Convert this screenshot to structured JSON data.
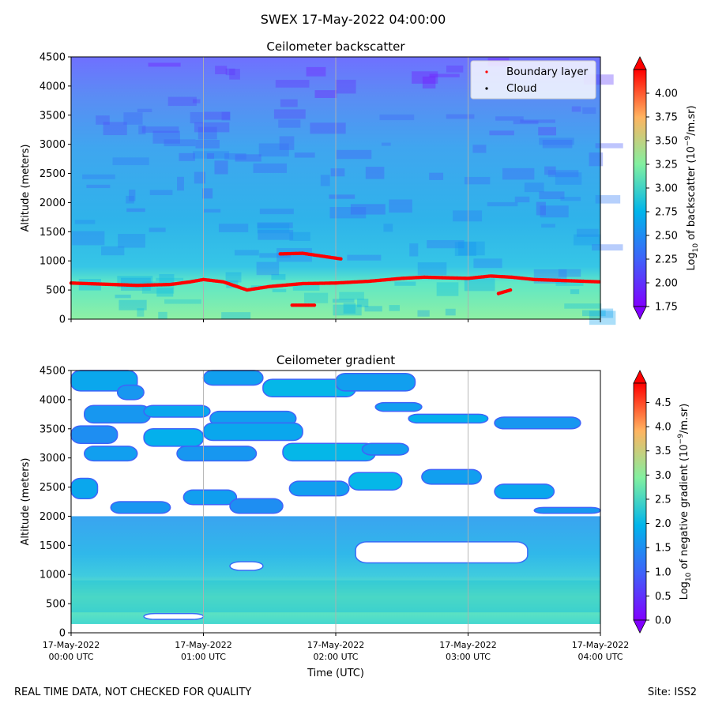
{
  "suptitle": "SWEX 17-May-2022 04:00:00",
  "footer": {
    "left": "REAL TIME DATA, NOT CHECKED FOR QUALITY",
    "right": "Site: ISS2"
  },
  "x_axis": {
    "label": "Time (UTC)",
    "range_hours": [
      0,
      4
    ],
    "ticks": [
      {
        "hour": 0,
        "date": "17-May-2022",
        "time": "00:00 UTC"
      },
      {
        "hour": 1,
        "date": "17-May-2022",
        "time": "01:00 UTC"
      },
      {
        "hour": 2,
        "date": "17-May-2022",
        "time": "02:00 UTC"
      },
      {
        "hour": 3,
        "date": "17-May-2022",
        "time": "03:00 UTC"
      },
      {
        "hour": 4,
        "date": "17-May-2022",
        "time": "04:00 UTC"
      }
    ]
  },
  "colors": {
    "boundary_layer": "#ff0000",
    "cloud": "#000000",
    "grid": "#b0b0b0",
    "gradient_background": "#ffffff"
  },
  "chart_data": [
    {
      "type": "heatmap",
      "title": "Ceilometer backscatter",
      "xlabel": "",
      "ylabel": "Altitude (meters)",
      "ylim": [
        0,
        4500
      ],
      "yticks": [
        0,
        500,
        1000,
        1500,
        2000,
        2500,
        3000,
        3500,
        4000,
        4500
      ],
      "colorbar": {
        "label": "Log10 of backscatter (10^-9/m.sr)",
        "label_main": "Log",
        "label_sub": "10",
        "label_mid": " of backscatter (10",
        "label_sup": "−9",
        "label_end": "/m.sr)",
        "range": [
          1.75,
          4.25
        ],
        "ticks": [
          1.75,
          2.0,
          2.25,
          2.5,
          2.75,
          3.0,
          3.25,
          3.5,
          3.75,
          4.0
        ],
        "tick_labels": [
          "1.75",
          "2.00",
          "2.25",
          "2.50",
          "2.75",
          "3.00",
          "3.25",
          "3.50",
          "3.75",
          "4.00"
        ],
        "extend": "both"
      },
      "legend": {
        "location": "upper right",
        "entries": [
          {
            "label": "Boundary layer",
            "color": "#ff0000"
          },
          {
            "label": "Cloud",
            "color": "#000000"
          }
        ]
      },
      "field": {
        "description_levels": [
          {
            "alt_min": 0,
            "alt_max": 700,
            "value": 2.75
          },
          {
            "alt_min": 700,
            "alt_max": 1700,
            "value": 2.45
          },
          {
            "alt_min": 1700,
            "alt_max": 3000,
            "value": 2.3
          },
          {
            "alt_min": 3000,
            "alt_max": 3800,
            "value": 2.15
          },
          {
            "alt_min": 3800,
            "alt_max": 4500,
            "value": 1.95
          }
        ]
      },
      "boundary_layer_series": [
        {
          "name": "main",
          "hours": [
            0.0,
            0.25,
            0.5,
            0.75,
            0.9,
            1.0,
            1.15,
            1.33,
            1.5,
            1.75,
            2.0,
            2.25,
            2.5,
            2.67,
            2.83,
            3.0,
            3.17,
            3.33,
            3.5,
            3.75,
            4.0
          ],
          "alt": [
            620,
            600,
            580,
            595,
            640,
            680,
            640,
            500,
            560,
            610,
            620,
            650,
            700,
            720,
            710,
            700,
            740,
            720,
            680,
            660,
            640
          ]
        },
        {
          "name": "upper",
          "hours": [
            1.58,
            1.75,
            1.9,
            2.05
          ],
          "alt": [
            1120,
            1130,
            1080,
            1030
          ]
        },
        {
          "name": "low",
          "hours": [
            1.67,
            1.85
          ],
          "alt": [
            240,
            240
          ]
        },
        {
          "name": "spots",
          "hours": [
            3.23,
            3.32
          ],
          "alt": [
            440,
            500
          ]
        }
      ]
    },
    {
      "type": "heatmap",
      "title": "Ceilometer gradient",
      "xlabel": "Time (UTC)",
      "ylabel": "Altitude (meters)",
      "ylim": [
        0,
        4500
      ],
      "yticks": [
        0,
        500,
        1000,
        1500,
        2000,
        2500,
        3000,
        3500,
        4000,
        4500
      ],
      "colorbar": {
        "label": "Log10 of negative gradient (10^-9/m.sr)",
        "label_main": "Log",
        "label_sub": "10",
        "label_mid": " of negative gradient (10",
        "label_sup": "−9",
        "label_end": "/m.sr)",
        "range": [
          0.0,
          4.9
        ],
        "ticks": [
          0.0,
          0.5,
          1.0,
          1.5,
          2.0,
          2.5,
          3.0,
          3.5,
          4.0,
          4.5
        ],
        "tick_labels": [
          "0.0",
          "0.5",
          "1.0",
          "1.5",
          "2.0",
          "2.5",
          "3.0",
          "3.5",
          "4.0",
          "4.5"
        ],
        "extend": "both"
      },
      "bands": [
        {
          "alt_min": 150,
          "alt_max": 2000,
          "value": 1.6
        },
        {
          "alt_min": 350,
          "alt_max": 900,
          "value": 2.2
        }
      ],
      "clear_gaps": [
        {
          "h0": 0.55,
          "h1": 1.0,
          "a0": 230,
          "a1": 330
        },
        {
          "h0": 1.2,
          "h1": 1.45,
          "a0": 1070,
          "a1": 1220
        },
        {
          "h0": 2.15,
          "h1": 3.45,
          "a0": 1200,
          "a1": 1560
        }
      ],
      "patches": [
        {
          "h0": 0.0,
          "h1": 0.5,
          "a0": 4150,
          "a1": 4500,
          "v": 1.8
        },
        {
          "h0": 0.35,
          "h1": 0.55,
          "a0": 4000,
          "a1": 4250,
          "v": 1.6
        },
        {
          "h0": 1.0,
          "h1": 1.45,
          "a0": 4250,
          "a1": 4500,
          "v": 1.7
        },
        {
          "h0": 1.45,
          "h1": 2.15,
          "a0": 4050,
          "a1": 4350,
          "v": 2.0
        },
        {
          "h0": 2.0,
          "h1": 2.6,
          "a0": 4150,
          "a1": 4450,
          "v": 1.7
        },
        {
          "h0": 0.1,
          "h1": 0.6,
          "a0": 3600,
          "a1": 3900,
          "v": 1.6
        },
        {
          "h0": 0.55,
          "h1": 1.05,
          "a0": 3700,
          "a1": 3900,
          "v": 1.8
        },
        {
          "h0": 1.05,
          "h1": 1.7,
          "a0": 3550,
          "a1": 3800,
          "v": 1.7
        },
        {
          "h0": 0.0,
          "h1": 0.35,
          "a0": 3250,
          "a1": 3550,
          "v": 1.5
        },
        {
          "h0": 0.55,
          "h1": 1.0,
          "a0": 3200,
          "a1": 3500,
          "v": 1.9
        },
        {
          "h0": 1.0,
          "h1": 1.75,
          "a0": 3300,
          "a1": 3600,
          "v": 1.8
        },
        {
          "h0": 2.3,
          "h1": 2.65,
          "a0": 3800,
          "a1": 3950,
          "v": 1.7
        },
        {
          "h0": 2.55,
          "h1": 3.15,
          "a0": 3600,
          "a1": 3750,
          "v": 1.9
        },
        {
          "h0": 3.2,
          "h1": 3.85,
          "a0": 3500,
          "a1": 3700,
          "v": 1.6
        },
        {
          "h0": 0.1,
          "h1": 0.5,
          "a0": 2950,
          "a1": 3200,
          "v": 1.7
        },
        {
          "h0": 0.8,
          "h1": 1.4,
          "a0": 2950,
          "a1": 3200,
          "v": 1.6
        },
        {
          "h0": 1.6,
          "h1": 2.3,
          "a0": 2950,
          "a1": 3250,
          "v": 2.0
        },
        {
          "h0": 2.2,
          "h1": 2.55,
          "a0": 3050,
          "a1": 3250,
          "v": 1.7
        },
        {
          "h0": 0.0,
          "h1": 0.2,
          "a0": 2300,
          "a1": 2650,
          "v": 1.8
        },
        {
          "h0": 0.3,
          "h1": 0.75,
          "a0": 2050,
          "a1": 2250,
          "v": 1.6
        },
        {
          "h0": 0.85,
          "h1": 1.25,
          "a0": 2200,
          "a1": 2450,
          "v": 1.7
        },
        {
          "h0": 1.2,
          "h1": 1.6,
          "a0": 2050,
          "a1": 2300,
          "v": 1.5
        },
        {
          "h0": 1.65,
          "h1": 2.1,
          "a0": 2350,
          "a1": 2600,
          "v": 1.7
        },
        {
          "h0": 2.1,
          "h1": 2.5,
          "a0": 2450,
          "a1": 2750,
          "v": 2.0
        },
        {
          "h0": 2.65,
          "h1": 3.1,
          "a0": 2550,
          "a1": 2800,
          "v": 1.7
        },
        {
          "h0": 3.2,
          "h1": 3.65,
          "a0": 2300,
          "a1": 2550,
          "v": 1.8
        },
        {
          "h0": 3.5,
          "h1": 4.0,
          "a0": 2050,
          "a1": 2150,
          "v": 1.6
        }
      ]
    }
  ]
}
